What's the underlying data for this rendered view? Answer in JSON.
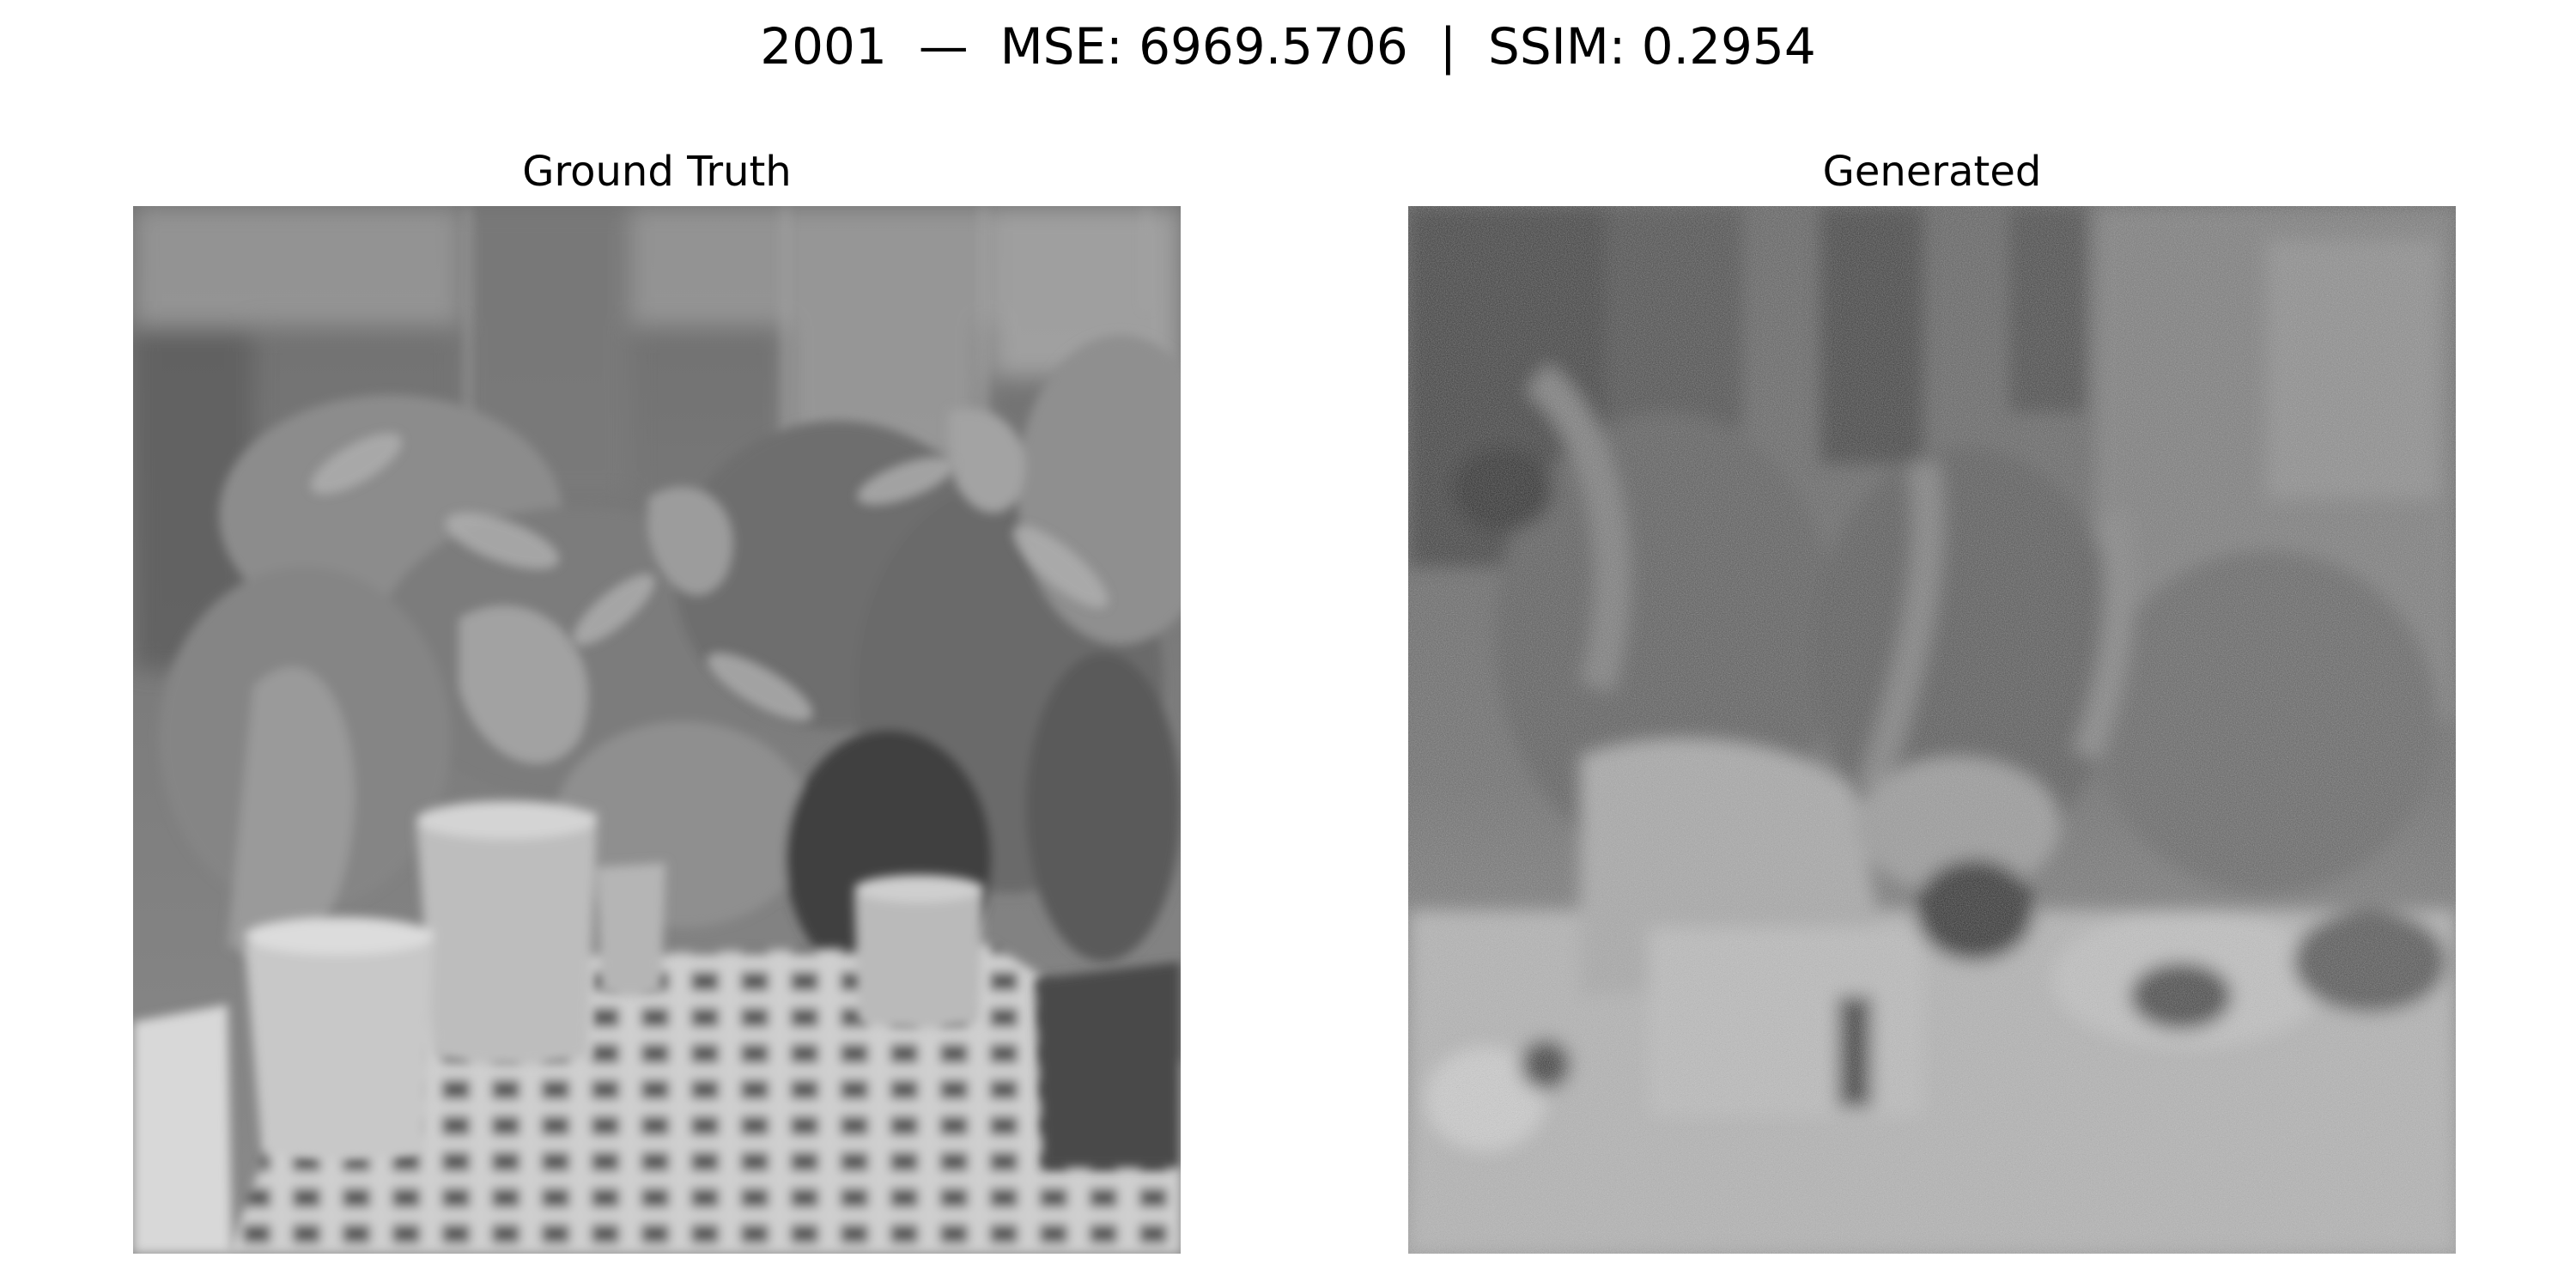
{
  "figure": {
    "suptitle": "2001  —  MSE: 6969.5706  |  SSIM: 0.2954"
  },
  "panels": [
    {
      "title": "Ground Truth",
      "content": "grayscale-photo-potted-plants-on-grid-bench"
    },
    {
      "title": "Generated",
      "content": "grayscale-noisy-reconstruction-potted-plants"
    }
  ]
}
